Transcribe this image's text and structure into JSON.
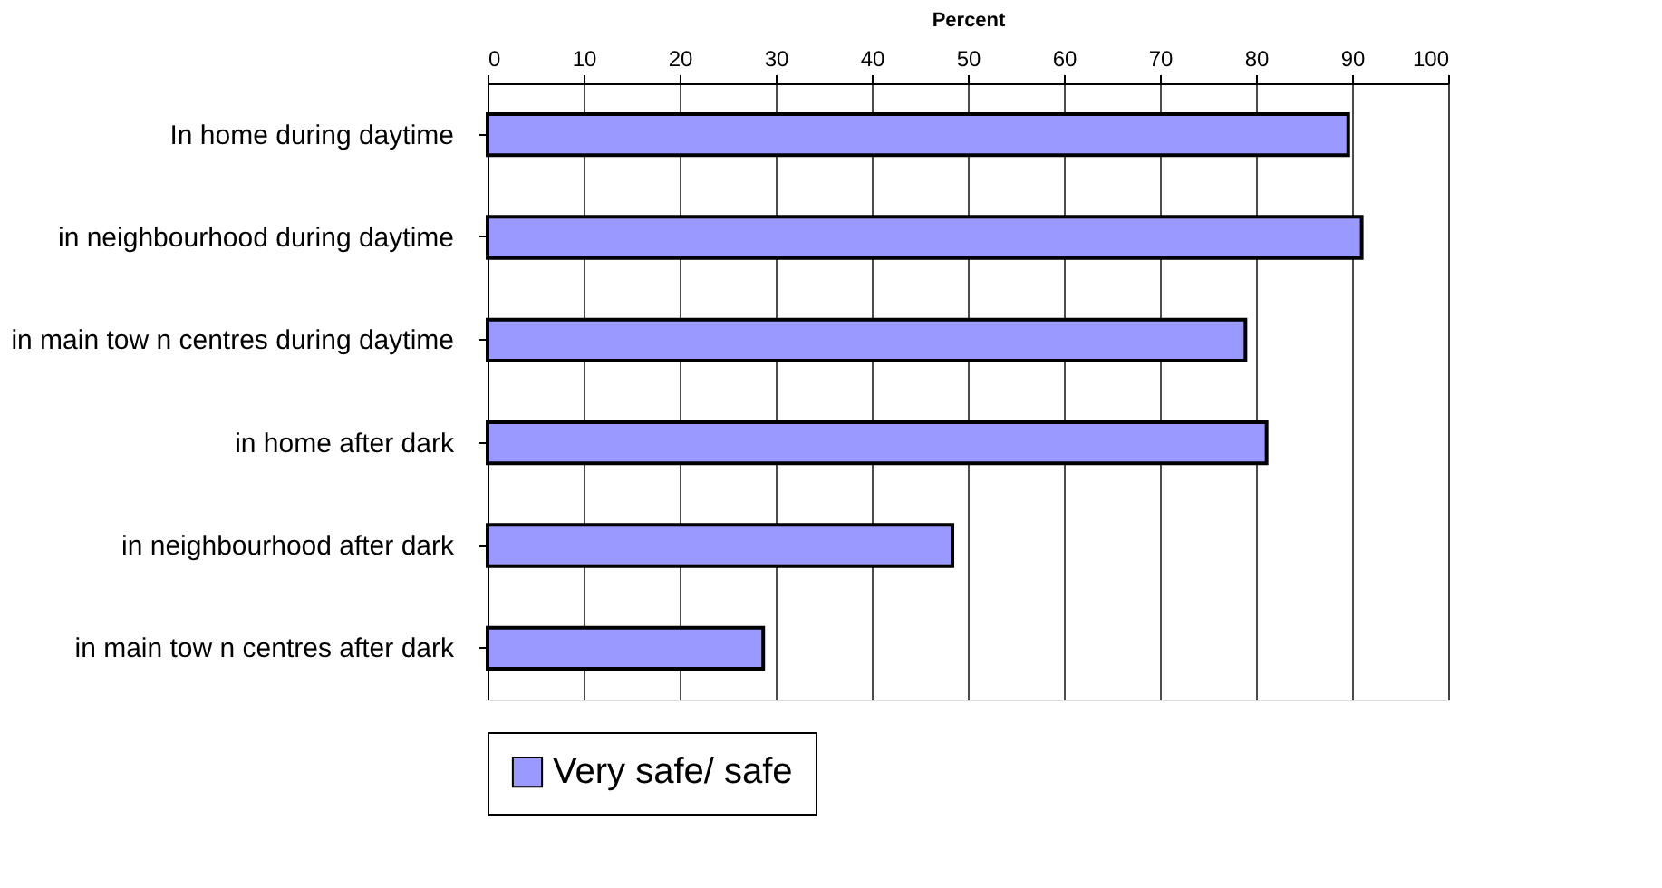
{
  "chart_data": {
    "type": "bar",
    "orientation": "horizontal",
    "xlabel": "Percent",
    "categories": [
      "In home during daytime",
      "in neighbourhood during daytime",
      "in main tow n centres during daytime",
      "in home after dark",
      "in neighbourhood after dark",
      "in main tow n centres after dark"
    ],
    "series": [
      {
        "name": "Very safe/ safe",
        "color": "#9999ff",
        "values": [
          89.6,
          91.0,
          78.9,
          81.1,
          48.4,
          28.7
        ]
      }
    ],
    "xlim": [
      0,
      100
    ],
    "xticks": [
      0,
      10,
      20,
      30,
      40,
      50,
      60,
      70,
      80,
      90,
      100
    ],
    "grid": "x",
    "legend": "bottom"
  }
}
